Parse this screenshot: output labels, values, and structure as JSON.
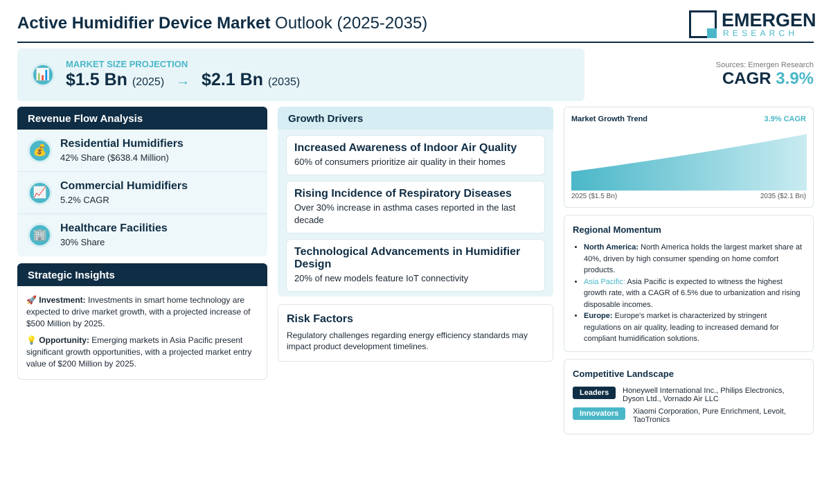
{
  "header": {
    "title_bold": "Active Humidifier Device Market",
    "title_rest": "Outlook (2025-2035)",
    "logo_name": "EMERGEN",
    "logo_sub": "RESEARCH"
  },
  "projection": {
    "label": "MARKET SIZE PROJECTION",
    "start_value": "$1.5 Bn",
    "start_year": "(2025)",
    "arrow": "→",
    "end_value": "$2.1 Bn",
    "end_year": "(2035)",
    "icon": "bar-chart-icon"
  },
  "summary": {
    "sources": "Sources: Emergen Research",
    "cagr_label": "CAGR",
    "cagr_value": "3.9%"
  },
  "revenue": {
    "title": "Revenue Flow Analysis",
    "items": [
      {
        "name": "Residential Humidifiers",
        "detail": "42% Share ($638.4 Million)",
        "icon": "💰"
      },
      {
        "name": "Commercial Humidifiers",
        "detail": "5.2% CAGR",
        "icon": "📈"
      },
      {
        "name": "Healthcare Facilities",
        "detail": "30% Share",
        "icon": "🏢"
      }
    ]
  },
  "strategic": {
    "title": "Strategic Insights",
    "investment_icon": "🚀",
    "investment_label": "Investment:",
    "investment_text": "Investments in smart home technology are expected to drive market growth, with a projected increase of $500 Million by 2025.",
    "opportunity_icon": "💡",
    "opportunity_label": "Opportunity:",
    "opportunity_text": "Emerging markets in Asia Pacific present significant growth opportunities, with a projected market entry value of $200 Million by 2025."
  },
  "drivers": {
    "title": "Growth Drivers",
    "items": [
      {
        "title": "Increased Awareness of Indoor Air Quality",
        "text": "60% of consumers prioritize air quality in their homes"
      },
      {
        "title": "Rising Incidence of Respiratory Diseases",
        "text": "Over 30% increase in asthma cases reported in the last decade"
      },
      {
        "title": "Technological Advancements in Humidifier Design",
        "text": "20% of new models feature IoT connectivity"
      }
    ]
  },
  "risk": {
    "title": "Risk Factors",
    "text": "Regulatory challenges regarding energy efficiency standards may impact product development timelines."
  },
  "trend": {
    "title": "Market Growth Trend",
    "cagr": "3.9% CAGR",
    "x_start": "2025 ($1.5 Bn)",
    "x_end": "2035 ($2.1 Bn)"
  },
  "chart_data": {
    "type": "area",
    "title": "Market Growth Trend",
    "x": [
      2025,
      2035
    ],
    "series": [
      {
        "values": [
          1.5,
          2.1
        ]
      }
    ],
    "xlabel": "",
    "ylabel": ""
  },
  "region": {
    "title": "Regional Momentum",
    "items": [
      {
        "label": "North America:",
        "text": "North America holds the largest market share at 40%, driven by high consumer spending on home comfort products."
      },
      {
        "label": "Asia Pacific:",
        "text": "Asia Pacific is expected to witness the highest growth rate, with a CAGR of 6.5% due to urbanization and rising disposable incomes."
      },
      {
        "label": "Europe:",
        "text": "Europe's market is characterized by stringent regulations on air quality, leading to increased demand for compliant humidification solutions."
      }
    ]
  },
  "competitive": {
    "title": "Competitive Landscape",
    "leaders_label": "Leaders",
    "leaders_text": "Honeywell International Inc., Philips Electronics, Dyson Ltd., Vornado Air LLC",
    "innovators_label": "Innovators",
    "innovators_text": "Xiaomi Corporation, Pure Enrichment, Levoit, TaoTronics",
    "leaders_color": "#0f2d44",
    "innovators_color": "#4ab7c8"
  }
}
